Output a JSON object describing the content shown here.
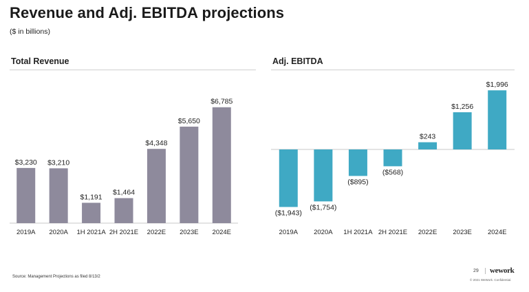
{
  "header": {
    "title": "Revenue and Adj. EBITDA projections",
    "subtitle": "($ in billions)"
  },
  "colors": {
    "revenue_bar": "#8e8a9c",
    "ebitda_bar": "#3fa9c4"
  },
  "footer": {
    "source": "Source: Management Projections as filed 8/13/2 ",
    "page_number": "29",
    "logo": "wework",
    "confidential": "© 2021 WeWork. Confidential."
  },
  "chart_data": [
    {
      "type": "bar",
      "title": "Total Revenue",
      "categories": [
        "2019A",
        "2020A",
        "1H 2021A",
        "2H 2021E",
        "2022E",
        "2023E",
        "2024E"
      ],
      "values": [
        3230,
        3210,
        1191,
        1464,
        4348,
        5650,
        6785
      ],
      "data_labels": [
        "$3,230",
        "$3,210",
        "$1,191",
        "$1,464",
        "$4,348",
        "$5,650",
        "$6,785"
      ],
      "ylim": [
        0,
        7500
      ],
      "grid": false
    },
    {
      "type": "bar",
      "title": "Adj. EBITDA",
      "categories": [
        "2019A",
        "2020A",
        "1H 2021A",
        "2H 2021E",
        "2022E",
        "2023E",
        "2024E"
      ],
      "values": [
        -1943,
        -1754,
        -895,
        -568,
        243,
        1256,
        1996
      ],
      "data_labels": [
        "($1,943)",
        "($1,754)",
        "($895)",
        "($568)",
        "$243",
        "$1,256",
        "$1,996"
      ],
      "ylim": [
        -2200,
        2300
      ],
      "grid": false
    }
  ]
}
